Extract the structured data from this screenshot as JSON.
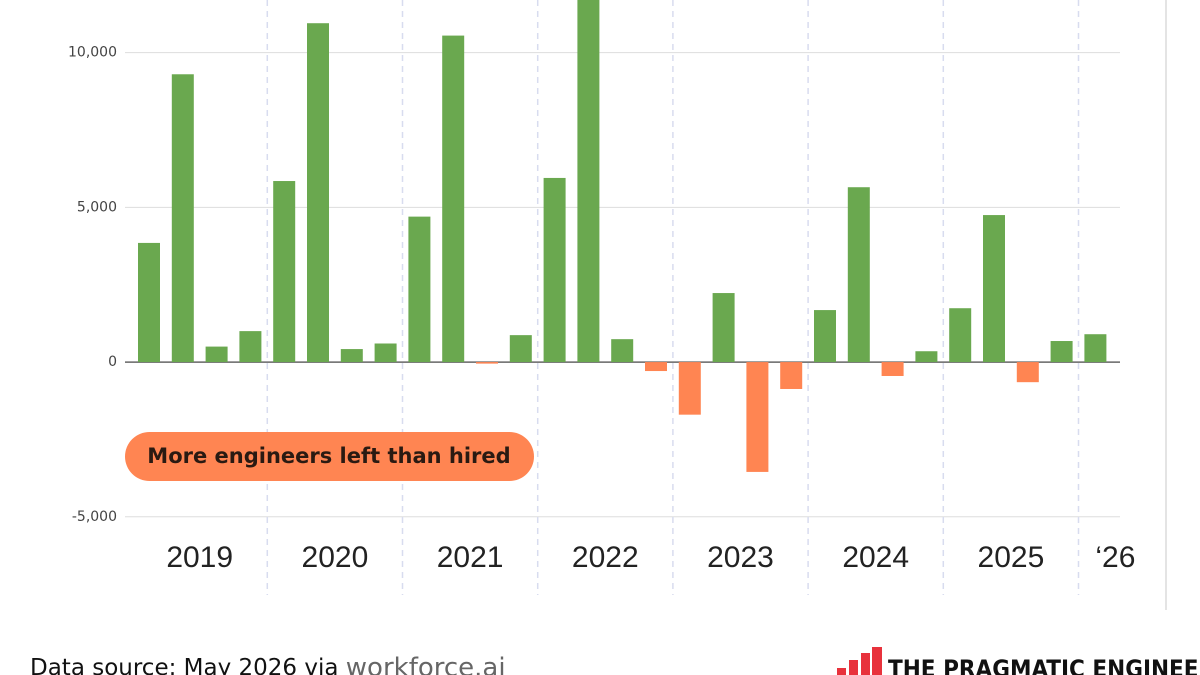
{
  "chart_data": {
    "type": "bar",
    "categories": [
      null,
      null,
      null,
      null,
      null,
      null,
      null,
      null,
      null,
      null,
      null,
      null,
      null,
      null,
      null,
      null,
      null,
      null,
      null,
      null,
      null,
      null,
      null,
      null,
      null,
      null,
      null,
      null,
      null
    ],
    "values": [
      3850,
      9300,
      500,
      1000,
      5850,
      10950,
      420,
      600,
      4700,
      10550,
      -50,
      870,
      5950,
      12000,
      740,
      -290,
      -1700,
      2230,
      -3550,
      -870,
      1680,
      5650,
      -450,
      350,
      1740,
      4750,
      -650,
      680,
      900
    ],
    "positive_color": "#6aa84f",
    "negative_color": "#ff8552",
    "x_group_labels": [
      "2019",
      "2020",
      "2021",
      "2022",
      "2023",
      "2024",
      "2025",
      "‘26"
    ],
    "ylim": [
      -5750,
      11700
    ],
    "yticks": [
      {
        "value": -5000,
        "label": "-5,000"
      },
      0,
      {
        "value": 5000,
        "label": "5,000"
      },
      {
        "value": 10000,
        "label": "10,000"
      }
    ],
    "grid": true,
    "annotation": "More engineers left than hired"
  },
  "footer": {
    "source": "Data source:  May 2026 via",
    "source_link": "workforce.ai",
    "brand": "THE PRAGMATIC ENGINEER"
  }
}
